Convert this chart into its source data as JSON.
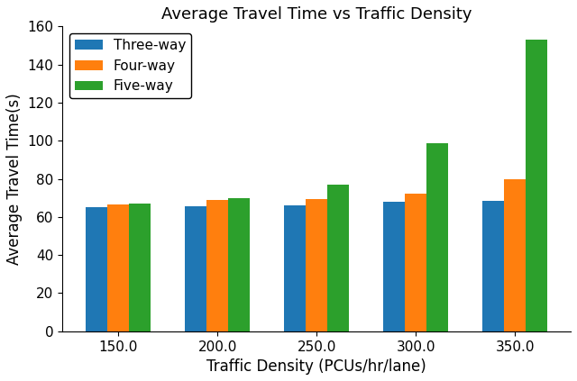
{
  "title": "Average Travel Time vs Traffic Density",
  "xlabel": "Traffic Density (PCUs/hr/lane)",
  "ylabel": "Average Travel Time(s)",
  "categories": [
    "150.0",
    "200.0",
    "250.0",
    "300.0",
    "350.0"
  ],
  "series": {
    "Three-way": [
      65.0,
      65.5,
      66.0,
      68.0,
      68.5
    ],
    "Four-way": [
      66.5,
      69.0,
      69.5,
      72.0,
      80.0
    ],
    "Five-way": [
      67.0,
      70.0,
      77.0,
      98.5,
      153.0
    ]
  },
  "colors": {
    "Three-way": "#1f77b4",
    "Four-way": "#ff7f0e",
    "Five-way": "#2ca02c"
  },
  "ylim": [
    0,
    160
  ],
  "yticks": [
    0,
    20,
    40,
    60,
    80,
    100,
    120,
    140,
    160
  ],
  "bar_width": 0.22,
  "legend_loc": "upper left",
  "title_fontsize": 13,
  "label_fontsize": 12,
  "tick_fontsize": 11,
  "legend_fontsize": 11
}
